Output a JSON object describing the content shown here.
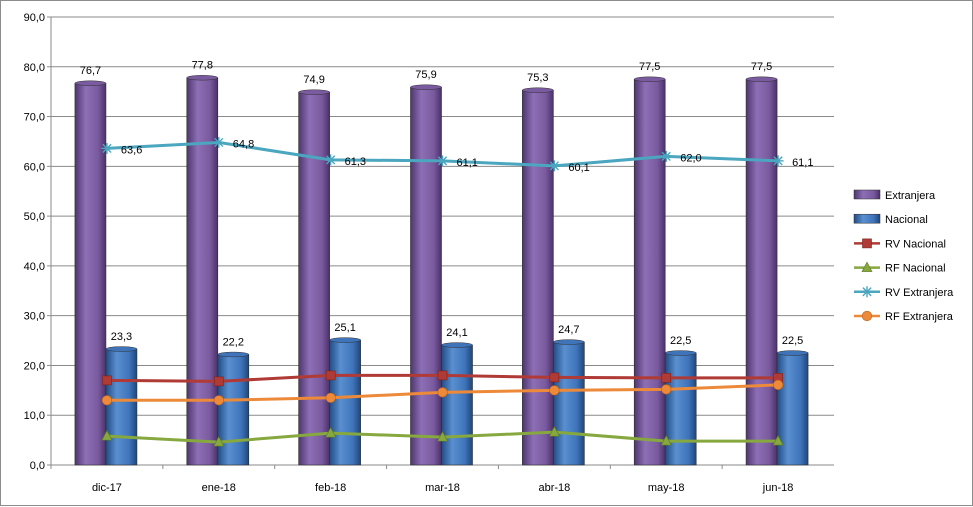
{
  "chart_data": {
    "type": "bar",
    "categories": [
      "dic-17",
      "ene-18",
      "feb-18",
      "mar-18",
      "abr-18",
      "may-18",
      "jun-18"
    ],
    "ylim": [
      0,
      90
    ],
    "yticks": [
      "0,0",
      "10,0",
      "20,0",
      "30,0",
      "40,0",
      "50,0",
      "60,0",
      "70,0",
      "80,0",
      "90,0"
    ],
    "grid": true,
    "legend_position": "right",
    "bars": [
      {
        "name": "Extranjera",
        "color": "#7b5ba0",
        "values": [
          76.7,
          77.8,
          74.9,
          75.9,
          75.3,
          77.5,
          77.5
        ],
        "labels": [
          "76,7",
          "77,8",
          "74,9",
          "75,9",
          "75,3",
          "77,5",
          "77,5"
        ]
      },
      {
        "name": "Nacional",
        "color": "#3f74bb",
        "values": [
          23.3,
          22.2,
          25.1,
          24.1,
          24.7,
          22.5,
          22.5
        ],
        "labels": [
          "23,3",
          "22,2",
          "25,1",
          "24,1",
          "24,7",
          "22,5",
          "22,5"
        ]
      }
    ],
    "lines": [
      {
        "name": "RV Nacional",
        "color": "#b03a35",
        "marker": "square",
        "values": [
          17.0,
          16.8,
          18.0,
          18.0,
          17.6,
          17.5,
          17.5
        ]
      },
      {
        "name": "RF Nacional",
        "color": "#86a83e",
        "marker": "triangle",
        "values": [
          5.8,
          4.6,
          6.4,
          5.6,
          6.6,
          4.8,
          4.8
        ]
      },
      {
        "name": "RV Extranjera",
        "color": "#4ba6bf",
        "marker": "star",
        "values": [
          63.6,
          64.8,
          61.3,
          61.1,
          60.1,
          62.0,
          61.1
        ],
        "labels": [
          "63,6",
          "64,8",
          "61,3",
          "61,1",
          "60,1",
          "62,0",
          "61,1"
        ]
      },
      {
        "name": "RF Extranjera",
        "color": "#ec8a3a",
        "marker": "circle",
        "values": [
          13.0,
          13.0,
          13.5,
          14.6,
          15.0,
          15.2,
          16.1
        ]
      }
    ]
  }
}
